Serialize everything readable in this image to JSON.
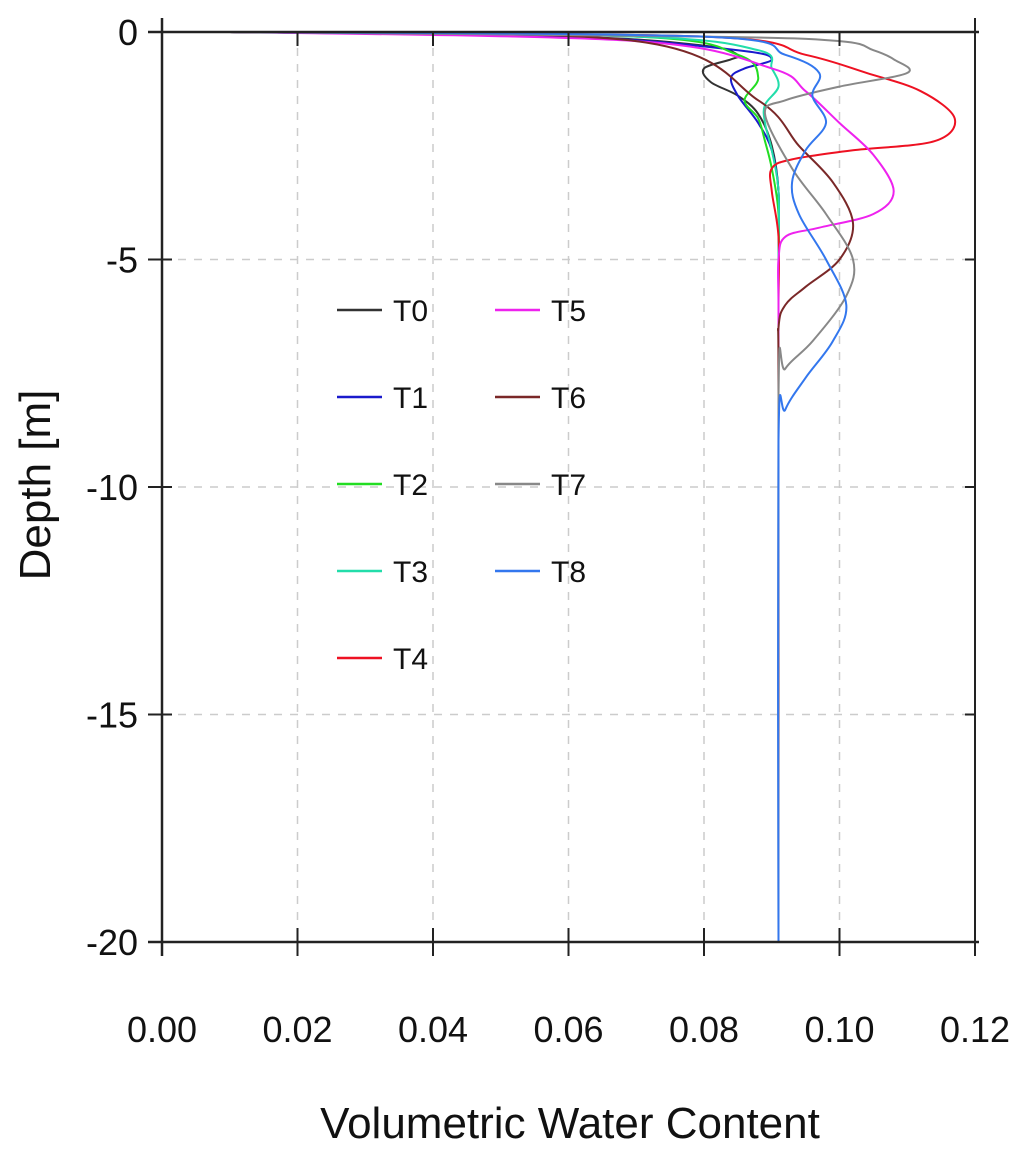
{
  "chart_data": {
    "type": "line",
    "title": "",
    "xlabel": "Volumetric Water Content",
    "ylabel": "Depth [m]",
    "xlim": [
      0.0,
      0.12
    ],
    "ylim": [
      -20,
      0
    ],
    "x_ticks": [
      "0.00",
      "0.02",
      "0.04",
      "0.06",
      "0.08",
      "0.10",
      "0.12"
    ],
    "y_ticks": [
      "0",
      "-5",
      "-10",
      "-15",
      "-20"
    ],
    "grid": true,
    "legend_position": "center-left",
    "series": [
      {
        "name": "T0",
        "color": "#333333",
        "x": [
          0.01,
          0.06,
          0.08,
          0.085,
          0.084,
          0.08,
          0.081,
          0.085,
          0.088,
          0.09,
          0.091,
          0.091,
          0.091,
          0.091
        ],
        "y": [
          0,
          -0.1,
          -0.3,
          -0.5,
          -0.6,
          -0.8,
          -1.1,
          -1.4,
          -1.8,
          -2.5,
          -3.5,
          -5.0,
          -8.0,
          -20.0
        ]
      },
      {
        "name": "T1",
        "color": "#1a1acc",
        "x": [
          0.01,
          0.06,
          0.085,
          0.09,
          0.086,
          0.084,
          0.085,
          0.088,
          0.09,
          0.091,
          0.091,
          0.091,
          0.091
        ],
        "y": [
          0,
          -0.1,
          -0.4,
          -0.6,
          -0.8,
          -1.0,
          -1.4,
          -2.0,
          -2.6,
          -3.5,
          -5.0,
          -8.0,
          -20.0
        ]
      },
      {
        "name": "T2",
        "color": "#22dd22",
        "x": [
          0.01,
          0.07,
          0.085,
          0.088,
          0.086,
          0.088,
          0.089,
          0.09,
          0.091,
          0.091,
          0.091,
          0.091
        ],
        "y": [
          0,
          -0.1,
          -0.5,
          -1.0,
          -1.5,
          -1.9,
          -2.4,
          -3.0,
          -4.0,
          -5.5,
          -8.0,
          -20.0
        ]
      },
      {
        "name": "T3",
        "color": "#22ddaa",
        "x": [
          0.01,
          0.07,
          0.088,
          0.09,
          0.091,
          0.089,
          0.089,
          0.09,
          0.091,
          0.091,
          0.091,
          0.091
        ],
        "y": [
          0,
          -0.1,
          -0.4,
          -0.8,
          -1.2,
          -1.6,
          -2.0,
          -2.6,
          -3.5,
          -5.0,
          -8.0,
          -20.0
        ]
      },
      {
        "name": "T4",
        "color": "#ee1122",
        "x": [
          0.01,
          0.08,
          0.095,
          0.104,
          0.112,
          0.117,
          0.114,
          0.102,
          0.093,
          0.09,
          0.09,
          0.091,
          0.091,
          0.091,
          0.091
        ],
        "y": [
          0,
          -0.1,
          -0.5,
          -0.9,
          -1.3,
          -1.9,
          -2.4,
          -2.6,
          -2.8,
          -3.0,
          -3.5,
          -4.5,
          -6.0,
          -8.0,
          -20.0
        ]
      },
      {
        "name": "T5",
        "color": "#ee22ee",
        "x": [
          0.01,
          0.07,
          0.09,
          0.095,
          0.1,
          0.105,
          0.108,
          0.105,
          0.097,
          0.092,
          0.091,
          0.091,
          0.091,
          0.091
        ],
        "y": [
          0,
          -0.2,
          -0.8,
          -1.3,
          -2.0,
          -2.7,
          -3.5,
          -4.0,
          -4.3,
          -4.5,
          -5.0,
          -6.0,
          -8.0,
          -20.0
        ]
      },
      {
        "name": "T6",
        "color": "#7a2828",
        "x": [
          0.01,
          0.07,
          0.088,
          0.094,
          0.099,
          0.102,
          0.1,
          0.095,
          0.092,
          0.091,
          0.091,
          0.091
        ],
        "y": [
          0,
          -0.2,
          -1.5,
          -2.5,
          -3.3,
          -4.2,
          -5.0,
          -5.6,
          -6.0,
          -6.5,
          -8.0,
          -20.0
        ]
      },
      {
        "name": "T7",
        "color": "#888888",
        "x": [
          0.01,
          0.08,
          0.1,
          0.105,
          0.108,
          0.11,
          0.1,
          0.092,
          0.089,
          0.093,
          0.098,
          0.102,
          0.101,
          0.096,
          0.092,
          0.091,
          0.091
        ],
        "y": [
          0,
          -0.1,
          -0.2,
          -0.4,
          -0.6,
          -0.9,
          -1.2,
          -1.5,
          -1.8,
          -3.0,
          -4.0,
          -5.0,
          -5.8,
          -6.8,
          -7.4,
          -8.0,
          -20.0
        ]
      },
      {
        "name": "T8",
        "color": "#3377ee",
        "x": [
          0.01,
          0.08,
          0.092,
          0.097,
          0.096,
          0.098,
          0.095,
          0.093,
          0.094,
          0.098,
          0.101,
          0.099,
          0.095,
          0.092,
          0.091,
          0.091
        ],
        "y": [
          0,
          -0.1,
          -0.5,
          -0.9,
          -1.4,
          -2.0,
          -2.6,
          -3.3,
          -4.0,
          -5.0,
          -6.0,
          -6.8,
          -7.6,
          -8.3,
          -9.0,
          -20.0
        ]
      }
    ]
  }
}
